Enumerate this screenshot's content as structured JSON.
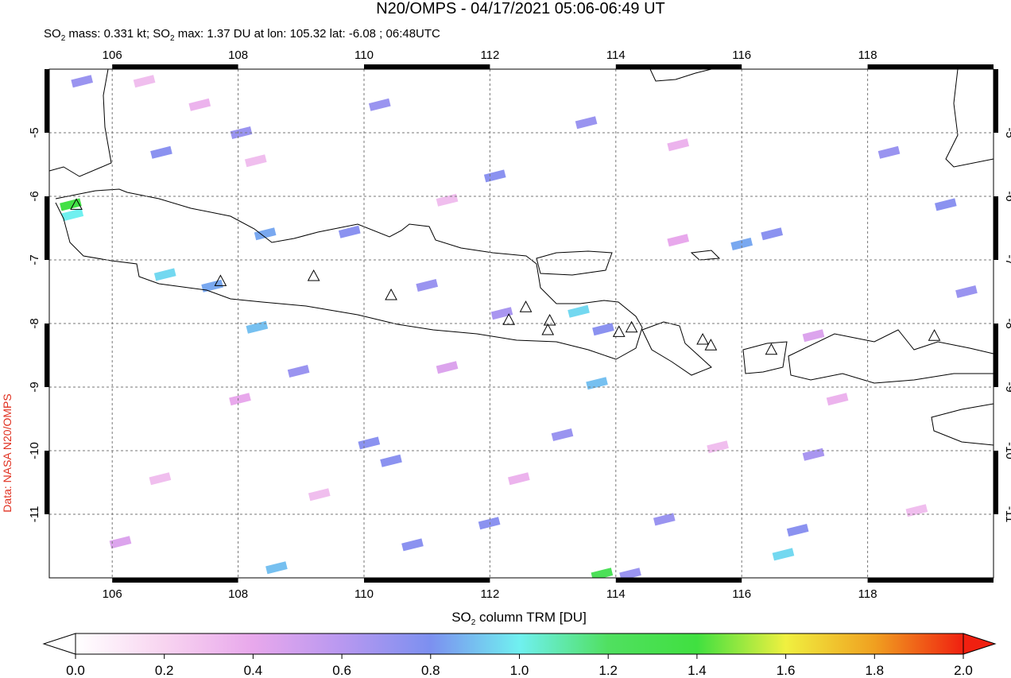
{
  "title": "N20/OMPS - 04/17/2021 05:06-06:49 UT",
  "subtitle": [
    "SO",
    "2",
    " mass: 0.331 kt; SO",
    "2",
    " max: 1.37 DU at lon: 105.32 lat: -6.08 ; 06:48UTC"
  ],
  "side_note": "Data: NASA N20/OMPS",
  "map": {
    "xlim": [
      105,
      120
    ],
    "ylim": [
      -12,
      -4
    ],
    "xticks": [
      106,
      108,
      110,
      112,
      114,
      116,
      118
    ],
    "yticks": [
      -5,
      -6,
      -7,
      -8,
      -9,
      -10,
      -11
    ],
    "grid": true,
    "pixels": [
      {
        "lon": 105.34,
        "lat": -6.13,
        "value": 1.37
      },
      {
        "lon": 105.37,
        "lat": -6.29,
        "value": 1.0
      },
      {
        "lon": 105.52,
        "lat": -4.19,
        "value": 0.7
      },
      {
        "lon": 106.78,
        "lat": -5.31,
        "value": 0.75
      },
      {
        "lon": 108.05,
        "lat": -5.0,
        "value": 0.7
      },
      {
        "lon": 108.43,
        "lat": -6.59,
        "value": 0.85
      },
      {
        "lon": 109.77,
        "lat": -6.56,
        "value": 0.75
      },
      {
        "lon": 106.84,
        "lat": -7.23,
        "value": 0.95
      },
      {
        "lon": 107.59,
        "lat": -7.41,
        "value": 0.85
      },
      {
        "lon": 108.3,
        "lat": -8.06,
        "value": 0.9
      },
      {
        "lon": 110.25,
        "lat": -4.56,
        "value": 0.7
      },
      {
        "lon": 112.08,
        "lat": -5.68,
        "value": 0.75
      },
      {
        "lon": 111.0,
        "lat": -7.4,
        "value": 0.7
      },
      {
        "lon": 112.19,
        "lat": -7.84,
        "value": 0.65
      },
      {
        "lon": 113.53,
        "lat": -4.84,
        "value": 0.7
      },
      {
        "lon": 113.8,
        "lat": -8.09,
        "value": 0.75
      },
      {
        "lon": 113.41,
        "lat": -7.81,
        "value": 0.95
      },
      {
        "lon": 116.0,
        "lat": -6.75,
        "value": 0.85
      },
      {
        "lon": 116.48,
        "lat": -6.59,
        "value": 0.75
      },
      {
        "lon": 117.14,
        "lat": -10.06,
        "value": 0.65
      },
      {
        "lon": 108.96,
        "lat": -8.75,
        "value": 0.7
      },
      {
        "lon": 110.08,
        "lat": -9.88,
        "value": 0.75
      },
      {
        "lon": 110.43,
        "lat": -10.16,
        "value": 0.75
      },
      {
        "lon": 113.15,
        "lat": -9.75,
        "value": 0.7
      },
      {
        "lon": 110.77,
        "lat": -11.48,
        "value": 0.75
      },
      {
        "lon": 111.99,
        "lat": -11.14,
        "value": 0.75
      },
      {
        "lon": 114.77,
        "lat": -11.08,
        "value": 0.7
      },
      {
        "lon": 116.89,
        "lat": -11.25,
        "value": 0.75
      },
      {
        "lon": 116.66,
        "lat": -11.63,
        "value": 0.95
      },
      {
        "lon": 113.78,
        "lat": -11.94,
        "value": 1.25
      },
      {
        "lon": 114.23,
        "lat": -11.94,
        "value": 0.7
      },
      {
        "lon": 108.61,
        "lat": -11.84,
        "value": 0.9
      },
      {
        "lon": 113.7,
        "lat": -8.94,
        "value": 0.9
      },
      {
        "lon": 118.34,
        "lat": -5.31,
        "value": 0.7
      },
      {
        "lon": 119.24,
        "lat": -6.13,
        "value": 0.75
      },
      {
        "lon": 119.57,
        "lat": -7.5,
        "value": 0.7
      },
      {
        "lon": 106.51,
        "lat": -4.19,
        "value": 0.3
      },
      {
        "lon": 107.39,
        "lat": -4.56,
        "value": 0.35
      },
      {
        "lon": 108.28,
        "lat": -5.44,
        "value": 0.3
      },
      {
        "lon": 111.32,
        "lat": -6.06,
        "value": 0.3
      },
      {
        "lon": 114.99,
        "lat": -5.19,
        "value": 0.35
      },
      {
        "lon": 117.52,
        "lat": -9.19,
        "value": 0.35
      },
      {
        "lon": 106.76,
        "lat": -10.44,
        "value": 0.3
      },
      {
        "lon": 109.29,
        "lat": -10.69,
        "value": 0.3
      },
      {
        "lon": 112.46,
        "lat": -10.44,
        "value": 0.35
      },
      {
        "lon": 115.62,
        "lat": -9.94,
        "value": 0.3
      },
      {
        "lon": 118.78,
        "lat": -10.94,
        "value": 0.3
      },
      {
        "lon": 111.32,
        "lat": -8.69,
        "value": 0.45
      },
      {
        "lon": 114.99,
        "lat": -6.69,
        "value": 0.4
      },
      {
        "lon": 117.14,
        "lat": -8.19,
        "value": 0.45
      },
      {
        "lon": 108.03,
        "lat": -9.19,
        "value": 0.4
      },
      {
        "lon": 106.13,
        "lat": -11.44,
        "value": 0.45
      }
    ],
    "volcanoes": [
      [
        105.43,
        -6.13
      ],
      [
        107.72,
        -7.33
      ],
      [
        109.2,
        -7.25
      ],
      [
        110.43,
        -7.55
      ],
      [
        112.3,
        -7.94
      ],
      [
        112.57,
        -7.74
      ],
      [
        112.95,
        -7.95
      ],
      [
        112.92,
        -8.1
      ],
      [
        114.05,
        -8.13
      ],
      [
        114.25,
        -8.06
      ],
      [
        115.38,
        -8.25
      ],
      [
        115.51,
        -8.34
      ],
      [
        116.47,
        -8.41
      ],
      [
        119.06,
        -8.19
      ]
    ]
  },
  "colorbar": {
    "label": [
      "SO",
      "2",
      " column TRM [DU]"
    ],
    "range": [
      0,
      2
    ],
    "colors": [
      "#ffffff",
      "#f8d4f0",
      "#e8a8ec",
      "#b898f0",
      "#7c90f0",
      "#70f0f0",
      "#50e060",
      "#40e040",
      "#f0f040",
      "#f0a020",
      "#f02010"
    ],
    "ticks": [
      {
        "value": 0,
        "label": "0.0"
      },
      {
        "value": 0.2,
        "label": "0.2"
      },
      {
        "value": 0.4,
        "label": "0.4"
      },
      {
        "value": 0.6,
        "label": "0.6"
      },
      {
        "value": 0.8,
        "label": "0.8"
      },
      {
        "value": 1,
        "label": "1.0"
      },
      {
        "value": 1.2,
        "label": "1.2"
      },
      {
        "value": 1.4,
        "label": "1.4"
      },
      {
        "value": 1.6,
        "label": "1.6"
      },
      {
        "value": 1.8,
        "label": "1.8"
      },
      {
        "value": 2,
        "label": "2.0"
      }
    ]
  }
}
